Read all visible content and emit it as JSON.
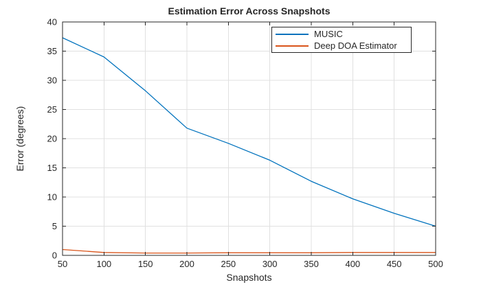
{
  "chart_data": {
    "type": "line",
    "title": "Estimation Error Across Snapshots",
    "xlabel": "Snapshots",
    "ylabel": "Error (degrees)",
    "xlim": [
      50,
      500
    ],
    "ylim": [
      0,
      40
    ],
    "xticks": [
      50,
      100,
      150,
      200,
      250,
      300,
      350,
      400,
      450,
      500
    ],
    "yticks": [
      0,
      5,
      10,
      15,
      20,
      25,
      30,
      35,
      40
    ],
    "grid": true,
    "legend_position": "upper-right-inside",
    "x": [
      50,
      100,
      150,
      200,
      250,
      300,
      350,
      400,
      450,
      500
    ],
    "series": [
      {
        "name": "MUSIC",
        "color": "#0072BD",
        "values": [
          37.3,
          34.0,
          28.2,
          21.8,
          19.2,
          16.3,
          12.7,
          9.7,
          7.2,
          5.0
        ]
      },
      {
        "name": "Deep DOA Estimator",
        "color": "#D95319",
        "values": [
          1.0,
          0.5,
          0.4,
          0.4,
          0.45,
          0.45,
          0.45,
          0.5,
          0.5,
          0.5
        ]
      }
    ]
  }
}
